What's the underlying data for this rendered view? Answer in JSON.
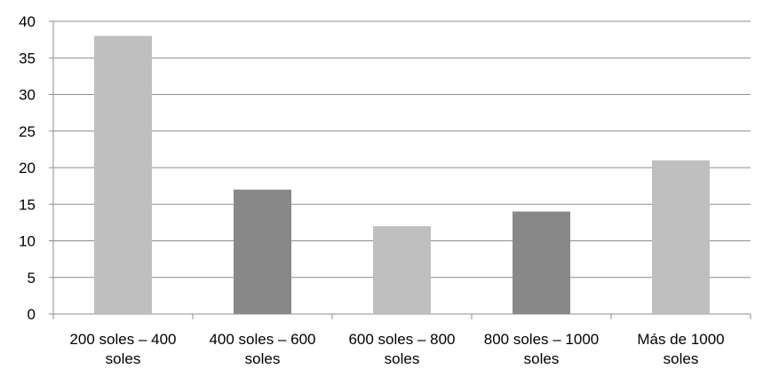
{
  "chart_data": {
    "type": "bar",
    "title": "",
    "xlabel": "",
    "ylabel": "",
    "categories": [
      [
        "200 soles – 400",
        "soles"
      ],
      [
        "400 soles – 600",
        "soles"
      ],
      [
        "600 soles – 800",
        "soles"
      ],
      [
        "800 soles – 1000",
        "soles"
      ],
      [
        "Más de 1000",
        "soles"
      ]
    ],
    "values": [
      38,
      17,
      12,
      14,
      21
    ],
    "bar_colors": [
      "#bfbfbf",
      "#888888",
      "#bfbfbf",
      "#888888",
      "#bfbfbf"
    ],
    "ylim": [
      0,
      40
    ],
    "yticks": [
      0,
      5,
      10,
      15,
      20,
      25,
      30,
      35,
      40
    ],
    "grid": true,
    "legend": "none"
  }
}
